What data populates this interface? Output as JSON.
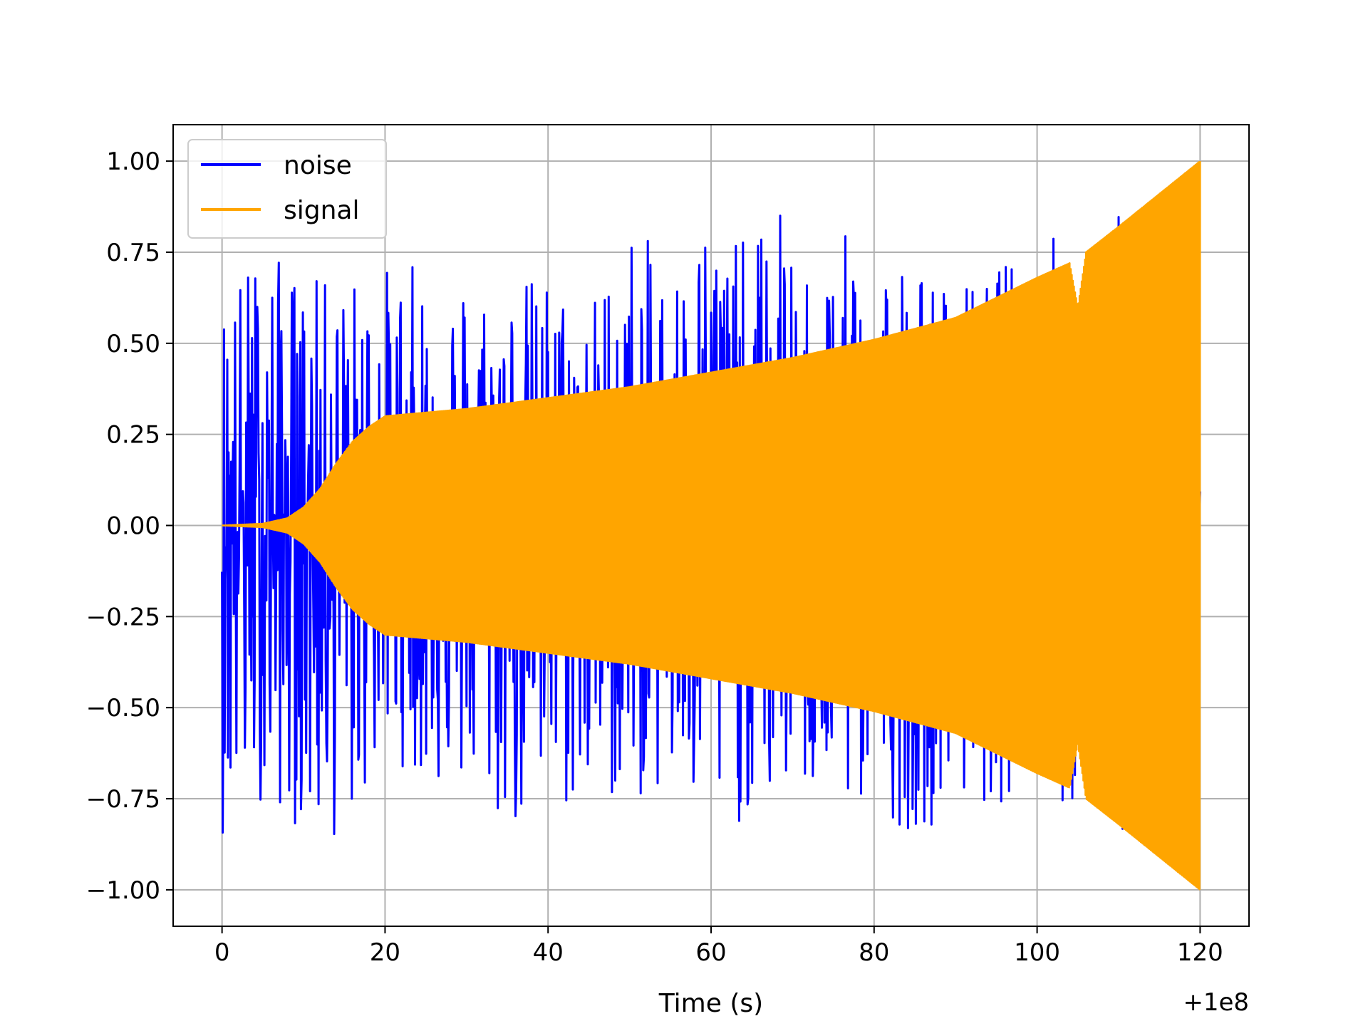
{
  "chart_data": {
    "type": "line",
    "title": "",
    "xlabel": "Time (s)",
    "ylabel": "",
    "x_offset_label": "+1e8",
    "xlim": [
      -6,
      126
    ],
    "ylim": [
      -1.1,
      1.1
    ],
    "xticks": [
      0,
      20,
      40,
      60,
      80,
      100,
      120
    ],
    "yticks": [
      1.0,
      0.75,
      0.5,
      0.25,
      0.0,
      -0.25,
      -0.5,
      -0.75,
      -1.0
    ],
    "xtick_labels": [
      "0",
      "20",
      "40",
      "60",
      "80",
      "100",
      "120"
    ],
    "ytick_labels": [
      "1.00",
      "0.75",
      "0.50",
      "0.25",
      "0.00",
      "−0.25",
      "−0.50",
      "−0.75",
      "−1.00"
    ],
    "grid": true,
    "legend_position": "top-left",
    "series": [
      {
        "name": "noise",
        "color": "#0000ff",
        "x": [
          0,
          5,
          10,
          15,
          20,
          25,
          30,
          35,
          40,
          45,
          50,
          55,
          60,
          65,
          68,
          70,
          75,
          80,
          85,
          90,
          95,
          100,
          105,
          110,
          120
        ],
        "upper": [
          0.65,
          0.78,
          0.68,
          0.68,
          0.72,
          0.72,
          0.7,
          0.68,
          0.7,
          0.62,
          0.84,
          0.72,
          0.9,
          0.75,
          1.0,
          0.7,
          0.78,
          0.84,
          0.72,
          0.66,
          0.7,
          0.88,
          0.72,
          0.86,
          0.8
        ],
        "lower": [
          -0.85,
          -0.75,
          -0.85,
          -0.88,
          -0.62,
          -0.72,
          -0.74,
          -0.86,
          -0.82,
          -0.78,
          -0.76,
          -0.75,
          -0.88,
          -0.8,
          -0.78,
          -0.72,
          -0.8,
          -0.78,
          -0.85,
          -0.78,
          -0.76,
          -0.78,
          -0.8,
          -0.88,
          -0.9
        ]
      },
      {
        "name": "signal",
        "color": "#ffa500",
        "x": [
          0,
          5,
          8,
          10,
          12,
          14,
          16,
          18,
          20,
          30,
          40,
          50,
          60,
          65,
          70,
          80,
          90,
          100,
          104,
          105,
          106,
          110,
          120
        ],
        "envelope": [
          0.0,
          0.005,
          0.02,
          0.05,
          0.1,
          0.17,
          0.23,
          0.27,
          0.3,
          0.32,
          0.35,
          0.38,
          0.42,
          0.44,
          0.46,
          0.51,
          0.57,
          0.68,
          0.72,
          0.6,
          0.75,
          0.82,
          1.0
        ]
      }
    ]
  }
}
